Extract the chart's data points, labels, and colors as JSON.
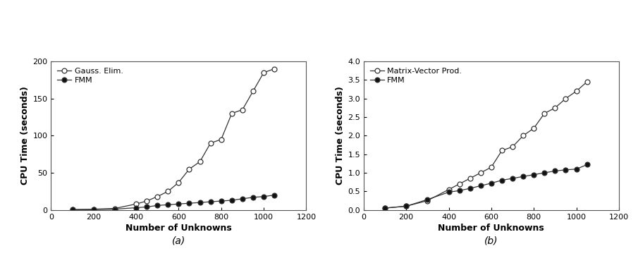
{
  "chart_a": {
    "xlabel": "Number of Unknowns",
    "ylabel": "CPU Time (seconds)",
    "label_a": "(a)",
    "xlim": [
      0,
      1200
    ],
    "ylim": [
      0,
      200
    ],
    "xticks": [
      0,
      200,
      400,
      600,
      800,
      1000,
      1200
    ],
    "yticks": [
      0,
      50,
      100,
      150,
      200
    ],
    "gauss_x": [
      100,
      200,
      300,
      400,
      450,
      500,
      550,
      600,
      650,
      700,
      750,
      800,
      850,
      900,
      950,
      1000,
      1050
    ],
    "gauss_y": [
      0.5,
      1,
      2,
      8,
      12,
      18,
      25,
      37,
      55,
      65,
      90,
      95,
      130,
      135,
      160,
      185,
      190
    ],
    "fmm_x": [
      100,
      200,
      300,
      400,
      450,
      500,
      550,
      600,
      650,
      700,
      750,
      800,
      850,
      900,
      950,
      1000,
      1050
    ],
    "fmm_y": [
      0.3,
      0.5,
      1,
      3,
      4,
      6,
      7,
      8,
      9,
      10,
      11,
      12,
      13,
      15,
      17,
      18,
      20
    ],
    "legend_gauss": "Gauss. Elim.",
    "legend_fmm": "FMM"
  },
  "chart_b": {
    "xlabel": "Number of Unknowns",
    "ylabel": "CPU Time (seconds)",
    "label_b": "(b)",
    "xlim": [
      0,
      1200
    ],
    "ylim": [
      0,
      4.0
    ],
    "xticks": [
      0,
      200,
      400,
      600,
      800,
      1000,
      1200
    ],
    "yticks": [
      0.0,
      0.5,
      1.0,
      1.5,
      2.0,
      2.5,
      3.0,
      3.5,
      4.0
    ],
    "mv_x": [
      100,
      200,
      300,
      400,
      450,
      500,
      550,
      600,
      650,
      700,
      750,
      800,
      850,
      900,
      950,
      1000,
      1050
    ],
    "mv_y": [
      0.05,
      0.1,
      0.25,
      0.55,
      0.7,
      0.85,
      1.0,
      1.15,
      1.6,
      1.7,
      2.0,
      2.2,
      2.6,
      2.75,
      3.0,
      3.2,
      3.45
    ],
    "fmm_x": [
      100,
      200,
      300,
      400,
      450,
      500,
      550,
      600,
      650,
      700,
      750,
      800,
      850,
      900,
      950,
      1000,
      1050
    ],
    "fmm_y": [
      0.05,
      0.1,
      0.28,
      0.48,
      0.52,
      0.58,
      0.65,
      0.72,
      0.8,
      0.85,
      0.9,
      0.95,
      1.0,
      1.05,
      1.08,
      1.1,
      1.22
    ],
    "legend_mv": "Matrix-Vector Prod.",
    "legend_fmm": "FMM"
  },
  "bg_color": "#ffffff",
  "fig_bg_color": "#ffffff",
  "line_color": "#333333",
  "open_marker_color": "#ffffff",
  "filled_marker_color": "#111111",
  "font_size": 8,
  "label_font_size": 9,
  "marker_size": 5,
  "line_width": 0.9
}
